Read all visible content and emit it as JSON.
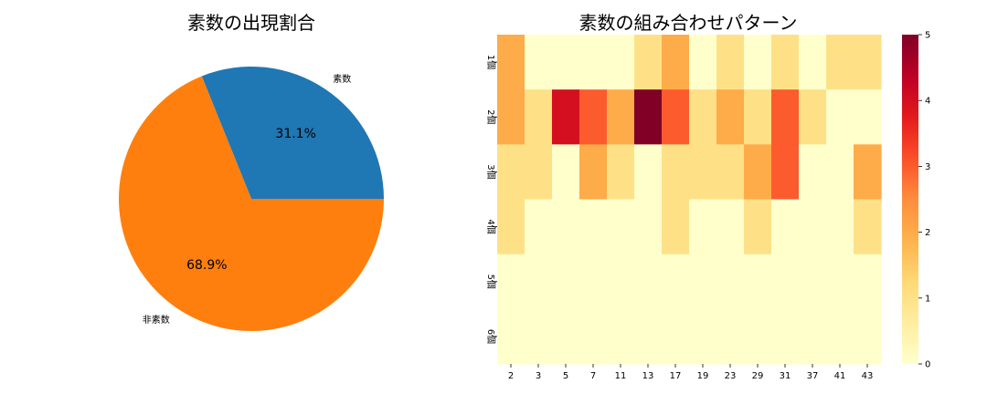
{
  "chart_data": [
    {
      "type": "pie",
      "title": "素数の出現割合",
      "labels": [
        "素数",
        "非素数"
      ],
      "values": [
        31.1,
        68.9
      ],
      "colors": [
        "#1f77b4",
        "#ff7f0e"
      ],
      "value_labels": [
        "31.1%",
        "68.9%"
      ]
    },
    {
      "type": "heatmap",
      "title": "素数の組み合わせパターン",
      "x_categories": [
        "2",
        "3",
        "5",
        "7",
        "11",
        "13",
        "17",
        "19",
        "23",
        "29",
        "31",
        "37",
        "41",
        "43"
      ],
      "y_categories": [
        "1個",
        "2個",
        "3個",
        "4個",
        "5個",
        "6個"
      ],
      "values": [
        [
          2,
          0,
          0,
          0,
          0,
          1,
          2,
          0,
          1,
          0,
          1,
          0,
          1,
          1
        ],
        [
          2,
          1,
          4,
          3,
          2,
          5,
          3,
          1,
          2,
          1,
          3,
          1,
          0,
          0
        ],
        [
          1,
          1,
          0,
          2,
          1,
          0,
          1,
          1,
          1,
          2,
          3,
          0,
          0,
          2
        ],
        [
          1,
          0,
          0,
          0,
          0,
          0,
          1,
          0,
          0,
          1,
          0,
          0,
          0,
          1
        ],
        [
          0,
          0,
          0,
          0,
          0,
          0,
          0,
          0,
          0,
          0,
          0,
          0,
          0,
          0
        ],
        [
          0,
          0,
          0,
          0,
          0,
          0,
          0,
          0,
          0,
          0,
          0,
          0,
          0,
          0
        ]
      ],
      "colorscale": "YlOrRd",
      "vmin": 0,
      "vmax": 5,
      "colorbar_ticks": [
        "0",
        "1",
        "2",
        "3",
        "4",
        "5"
      ]
    }
  ]
}
